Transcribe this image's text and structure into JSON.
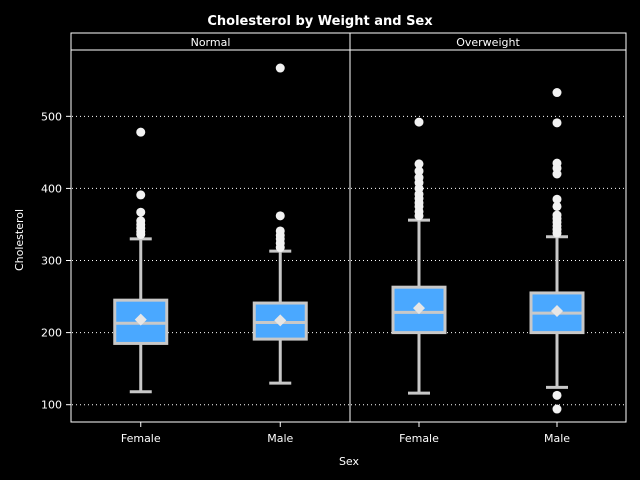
{
  "chart_data": {
    "type": "box",
    "title": "Cholesterol by Weight and Sex",
    "xlabel": "Sex",
    "ylabel": "Cholesterol",
    "ylim": [
      76,
      592
    ],
    "yticks": [
      100,
      200,
      300,
      400,
      500
    ],
    "grid": "horizontal-dotted",
    "colors": {
      "background": "#000000",
      "box_fill": "#4aa8ff",
      "box_line": "#c8c8c8",
      "grid": "#ffffff",
      "frame": "#ffffff",
      "text": "#ffffff"
    },
    "panels": [
      {
        "label": "Normal",
        "categories": [
          "Female",
          "Male"
        ],
        "boxes": [
          {
            "category": "Female",
            "min": 118,
            "q1": 185,
            "median": 213,
            "q3": 245,
            "max": 330,
            "mean": 218,
            "outliers": [
              336,
              340,
              345,
              350,
              355,
              367,
              391,
              478
            ]
          },
          {
            "category": "Male",
            "min": 130,
            "q1": 191,
            "median": 214,
            "q3": 241,
            "max": 313,
            "mean": 217,
            "outliers": [
              318,
              324,
              330,
              335,
              341,
              362,
              567
            ]
          }
        ]
      },
      {
        "label": "Overweight",
        "categories": [
          "Female",
          "Male"
        ],
        "boxes": [
          {
            "category": "Female",
            "min": 116,
            "q1": 200,
            "median": 228,
            "q3": 263,
            "max": 356,
            "mean": 234,
            "outliers": [
              362,
              368,
              375,
              380,
              386,
              392,
              400,
              408,
              415,
              424,
              434,
              492
            ]
          },
          {
            "category": "Male",
            "min": 124,
            "q1": 200,
            "median": 227,
            "q3": 255,
            "max": 333,
            "mean": 230,
            "outliers": [
              94,
              113,
              338,
              343,
              348,
              353,
              358,
              363,
              375,
              385,
              420,
              428,
              435,
              491,
              533
            ]
          }
        ]
      }
    ]
  }
}
